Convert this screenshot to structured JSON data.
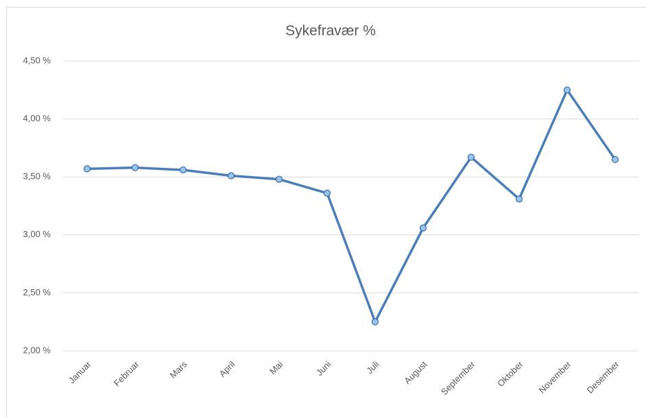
{
  "chart_data": {
    "type": "line",
    "title": "Sykefravær %",
    "categories": [
      "Januar",
      "Februar",
      "Mars",
      "April",
      "Mai",
      "Juni",
      "Juli",
      "August",
      "September",
      "Oktober",
      "November",
      "Desember"
    ],
    "series": [
      {
        "name": "Sykefravær %",
        "color": "#4a7ebb",
        "marker_color": "#9dc3e6",
        "values": [
          3.57,
          3.58,
          3.56,
          3.51,
          3.48,
          3.36,
          2.25,
          3.06,
          3.67,
          3.31,
          4.25,
          3.65
        ]
      }
    ],
    "ylim": [
      2,
      4.5
    ],
    "yticks": [
      {
        "value": 2,
        "label": "2,00 %"
      },
      {
        "value": 2.5,
        "label": "2,50 %"
      },
      {
        "value": 3,
        "label": "3,00 %"
      },
      {
        "value": 3.5,
        "label": "3,50 %"
      },
      {
        "value": 4,
        "label": "4,00 %"
      },
      {
        "value": 4.5,
        "label": "4,50 %"
      }
    ],
    "grid": true
  }
}
